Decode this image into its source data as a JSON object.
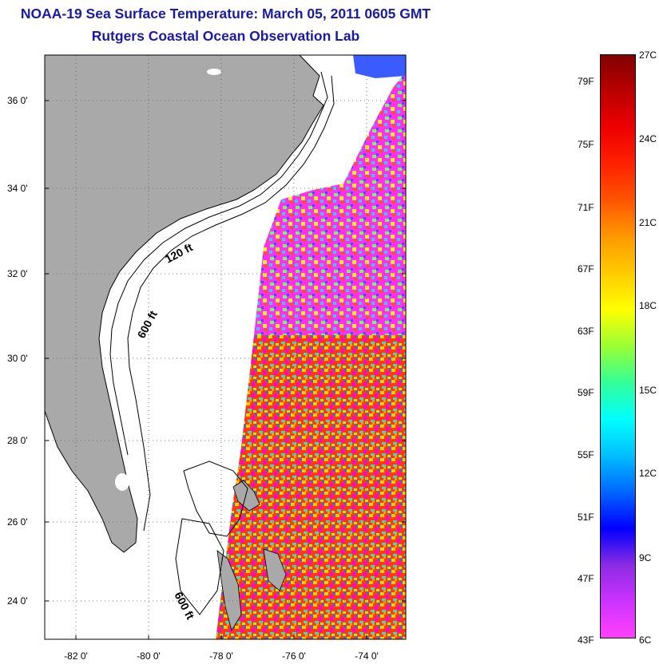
{
  "title": "NOAA-19 Sea Surface Temperature:  March 05, 2011 0605 GMT",
  "subtitle": "Rutgers Coastal Ocean Observation Lab",
  "lat_ticks": [
    "36 0'",
    "34 0'",
    "32 0'",
    "30 0'",
    "28 0'",
    "26 0'",
    "24 0'"
  ],
  "lon_ticks": [
    "-82 0'",
    "-80 0'",
    "-78 0'",
    "-76 0'",
    "-74 0'"
  ],
  "map_labels": {
    "isobath_120": "120 ft",
    "isobath_600_north": "600 ft",
    "isobath_600_south": "600 ft"
  },
  "colorbar": {
    "fahrenheit_ticks": [
      "79F",
      "75F",
      "71F",
      "67F",
      "63F",
      "59F",
      "55F",
      "51F",
      "47F",
      "43F"
    ],
    "celsius_ticks": [
      "27C",
      "24C",
      "21C",
      "18C",
      "15C",
      "12C",
      "9C",
      "6C"
    ],
    "colors": [
      "#ff40ff",
      "#cc33ff",
      "#8a2be2",
      "#0000ff",
      "#0066ff",
      "#00bfff",
      "#00ffff",
      "#33ff99",
      "#99ff33",
      "#ffff00",
      "#ffcc00",
      "#ff9900",
      "#ff5500",
      "#ff2200",
      "#ee0000",
      "#bb0000",
      "#800000"
    ]
  },
  "land_color": "#a9a9a9"
}
